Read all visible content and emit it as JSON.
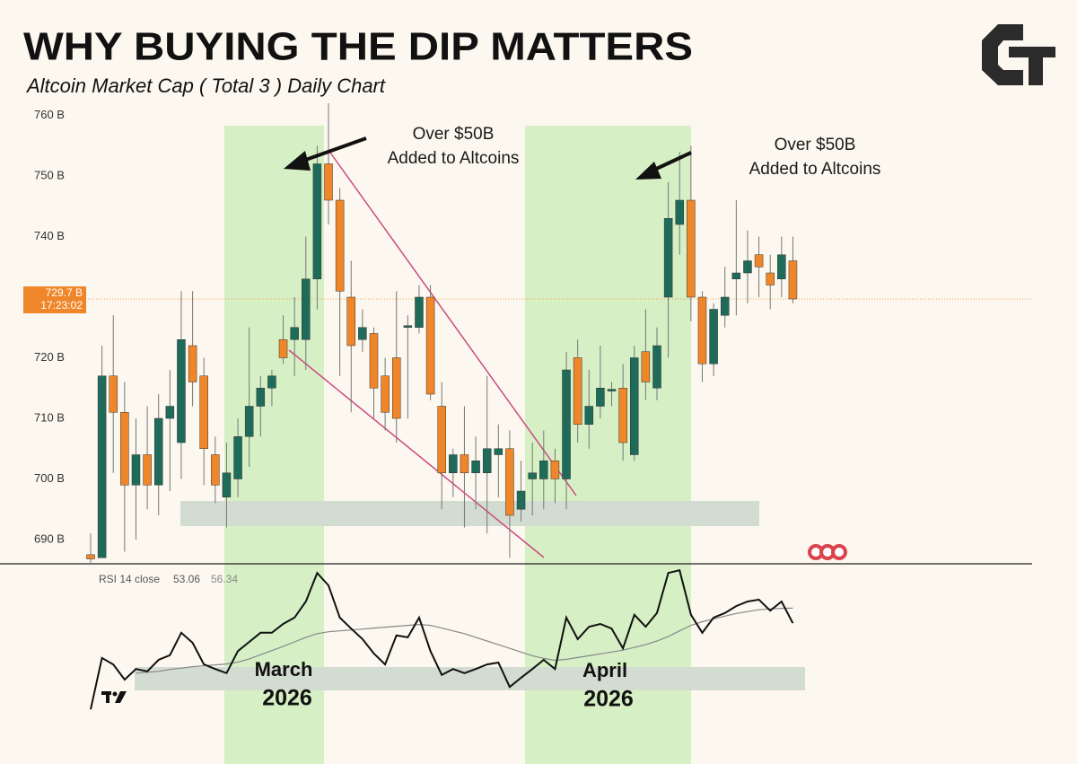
{
  "chart_data": {
    "type": "candlestick",
    "title": "WHY BUYING THE DIP MATTERS",
    "subtitle": "Altcoin Market Cap ( Total 3 ) Daily Chart",
    "annotations": [
      {
        "lines": [
          "Over $50B",
          "Added to Altcoins"
        ]
      },
      {
        "lines": [
          "Over $50B",
          "Added to Altcoins"
        ]
      }
    ],
    "period_labels": [
      {
        "lines": [
          "March",
          "2026"
        ]
      },
      {
        "lines": [
          "April",
          "2026"
        ]
      }
    ],
    "up_color": "#1f6b5a",
    "down_color": "#f0862a",
    "ylim": [
      686,
      762
    ],
    "yticks": [
      {
        "value": 690,
        "label": "690 B"
      },
      {
        "value": 700,
        "label": "700 B"
      },
      {
        "value": 710,
        "label": "710 B"
      },
      {
        "value": 720,
        "label": "720 B"
      },
      {
        "value": 730,
        "label": "730 B"
      },
      {
        "value": 740,
        "label": "740 B"
      },
      {
        "value": 750,
        "label": "750 B"
      },
      {
        "value": 760,
        "label": "760 B"
      }
    ],
    "last_price": {
      "value": 729.7,
      "label": "729.7 B"
    },
    "countdown": "17:23:02",
    "open": [
      687.5,
      687,
      717,
      711,
      699,
      704,
      699,
      710,
      706,
      722,
      717,
      704,
      697,
      700,
      707,
      712,
      715,
      723,
      723,
      723,
      733,
      752,
      746,
      730,
      723,
      724,
      717,
      720,
      725,
      725,
      730,
      712,
      701,
      704,
      701,
      701,
      704,
      705,
      695,
      700,
      700,
      703,
      700,
      720,
      709,
      712,
      714.5,
      715,
      704,
      721,
      715,
      730,
      742,
      746,
      730,
      719,
      727,
      733,
      734,
      737,
      734,
      733,
      736
    ],
    "high": [
      691,
      722,
      727,
      716,
      710,
      712,
      714,
      718,
      731,
      731,
      720,
      707,
      706,
      710,
      725,
      717,
      718,
      727,
      730,
      740,
      755,
      762,
      748,
      736,
      728,
      725,
      720,
      731,
      727,
      732,
      732,
      716,
      705,
      712,
      707,
      717,
      709,
      708,
      703,
      706,
      708,
      705,
      721,
      723,
      718,
      722,
      716,
      719,
      722,
      728,
      725,
      749,
      754,
      755,
      731,
      729,
      735,
      746,
      741,
      740,
      737,
      740,
      740
    ],
    "low": [
      686,
      687,
      701,
      688,
      690,
      695,
      694,
      698,
      700,
      712,
      699,
      696,
      692,
      697,
      702,
      707,
      712,
      719,
      717,
      718,
      728,
      742,
      717,
      711,
      721,
      710,
      708,
      706,
      710,
      724,
      713,
      695,
      697,
      692,
      695,
      691,
      697,
      687,
      693,
      694,
      695,
      696,
      695,
      706,
      705,
      710,
      712,
      703,
      703,
      713,
      713,
      720,
      737,
      726,
      716,
      717,
      725,
      727,
      729,
      730,
      728,
      730,
      729
    ],
    "close": [
      686.8,
      717,
      711,
      699,
      704,
      699,
      710,
      712,
      723,
      716,
      705,
      699,
      701,
      707,
      712,
      715,
      717,
      720,
      725,
      733,
      752,
      746,
      731,
      722,
      725,
      715,
      711,
      710,
      725.3,
      730,
      714,
      701,
      704,
      701,
      703,
      705,
      705,
      694,
      698,
      701,
      703,
      700,
      718,
      709,
      712,
      715,
      714.8,
      706,
      720,
      716,
      722,
      743,
      746,
      730,
      719,
      728,
      730,
      734,
      736,
      735,
      732,
      737,
      729.7
    ],
    "rsi": {
      "label": "RSI 14 close",
      "color": "#111111",
      "ma_color": "#888888",
      "ylim": [
        32,
        66
      ],
      "values": [
        34.3,
        45.5,
        44.1,
        40.8,
        43.1,
        42.6,
        45.1,
        46.1,
        51.0,
        48.8,
        44.1,
        43.1,
        42.2,
        47.0,
        49.0,
        51.0,
        51.0,
        52.9,
        54.3,
        57.8,
        64.0,
        61.3,
        54.3,
        51.9,
        49.6,
        46.5,
        44.1,
        50.4,
        50.0,
        54.3,
        47.0,
        41.8,
        43.1,
        42.2,
        43.1,
        44.1,
        44.5,
        39.2,
        41.2,
        43.1,
        45.1,
        43.1,
        54.3,
        49.6,
        52.3,
        52.9,
        51.9,
        47.6,
        54.9,
        52.3,
        55.3,
        64.0,
        64.6,
        54.9,
        51.0,
        54.3,
        55.3,
        56.8,
        57.8,
        58.2,
        55.8,
        57.8,
        53.06
      ],
      "ma": [
        null,
        null,
        null,
        null,
        42.2,
        42.4,
        42.6,
        43.0,
        43.3,
        43.6,
        43.8,
        44.0,
        44.2,
        44.6,
        45.3,
        46.2,
        47.1,
        48.0,
        49.0,
        50.0,
        50.8,
        51.2,
        51.4,
        51.6,
        51.8,
        52.0,
        52.2,
        52.4,
        52.6,
        52.8,
        52.6,
        52.0,
        51.4,
        50.8,
        50.0,
        49.2,
        48.4,
        47.6,
        46.8,
        46.0,
        45.4,
        45.0,
        45.2,
        45.6,
        46.0,
        46.4,
        46.8,
        47.2,
        47.8,
        48.4,
        49.2,
        50.2,
        51.4,
        52.6,
        53.4,
        54.0,
        54.6,
        55.2,
        55.6,
        56.0,
        56.2,
        56.3,
        56.34
      ]
    }
  }
}
